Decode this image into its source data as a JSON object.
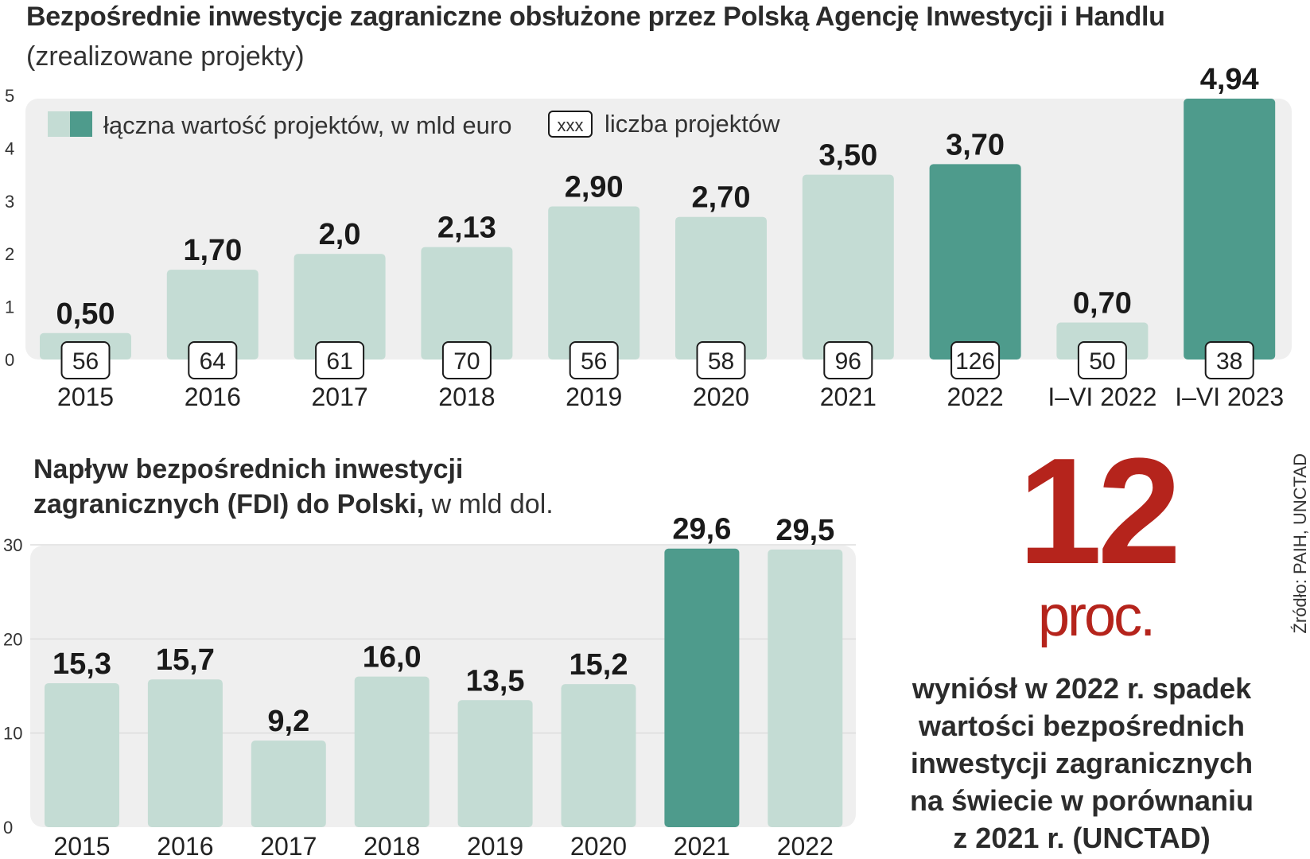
{
  "chart_data": [
    {
      "type": "bar",
      "title": "Bezpośrednie inwestycje zagraniczne obsłużone przez Polską Agencję Inwestycji i Handlu",
      "subtitle": "(zrealizowane projekty)",
      "categories": [
        "2015",
        "2016",
        "2017",
        "2018",
        "2019",
        "2020",
        "2021",
        "2022",
        "I–VI 2022",
        "I–VI 2023"
      ],
      "values": [
        0.5,
        1.7,
        2.0,
        2.13,
        2.9,
        2.7,
        3.5,
        3.7,
        0.7,
        4.94
      ],
      "value_labels": [
        "0,50",
        "1,70",
        "2,0",
        "2,13",
        "2,90",
        "2,70",
        "3,50",
        "3,70",
        "0,70",
        "4,94"
      ],
      "project_counts": [
        "56",
        "64",
        "61",
        "70",
        "56",
        "58",
        "96",
        "126",
        "50",
        "38"
      ],
      "highlighted": [
        false,
        false,
        false,
        false,
        false,
        false,
        false,
        true,
        false,
        true
      ],
      "yticks": [
        "0",
        "1",
        "2",
        "3",
        "4",
        "5"
      ],
      "ylim": [
        0,
        5
      ],
      "legend": {
        "value_label": "łączna wartość projektów, w mld euro",
        "count_box": "xxx",
        "count_label": "liczba projektów",
        "placement": "top-left"
      },
      "colors": {
        "light": "#c4dcd4",
        "dark": "#4e9b8c",
        "panel": "#efefef"
      }
    },
    {
      "type": "bar",
      "title_bold_line1": "Napływ bezpośrednich inwestycji",
      "title_bold_line2": "zagranicznych (FDI) do Polski,",
      "title_unit": " w mld dol.",
      "categories": [
        "2015",
        "2016",
        "2017",
        "2018",
        "2019",
        "2020",
        "2021",
        "2022"
      ],
      "values": [
        15.3,
        15.7,
        9.2,
        16.0,
        13.5,
        15.2,
        29.6,
        29.5
      ],
      "value_labels": [
        "15,3",
        "15,7",
        "9,2",
        "16,0",
        "13,5",
        "15,2",
        "29,6",
        "29,5"
      ],
      "highlighted": [
        false,
        false,
        false,
        false,
        false,
        false,
        true,
        false
      ],
      "yticks": [
        "0",
        "10",
        "20",
        "30"
      ],
      "ylim": [
        0,
        30
      ],
      "colors": {
        "light": "#c4dcd4",
        "dark": "#4e9b8c",
        "panel": "#efefef",
        "grid": "#dddddd"
      }
    }
  ],
  "callout": {
    "big_number": "12",
    "unit": "proc.",
    "text": "wyniósł w 2022 r. spadek wartości bezpośrednich inwestycji zagranicznych na świecie w porównaniu z 2021 r. (UNCTAD)",
    "color": "#b5241c"
  },
  "source": "Źródło: PAIH, UNCTAD"
}
